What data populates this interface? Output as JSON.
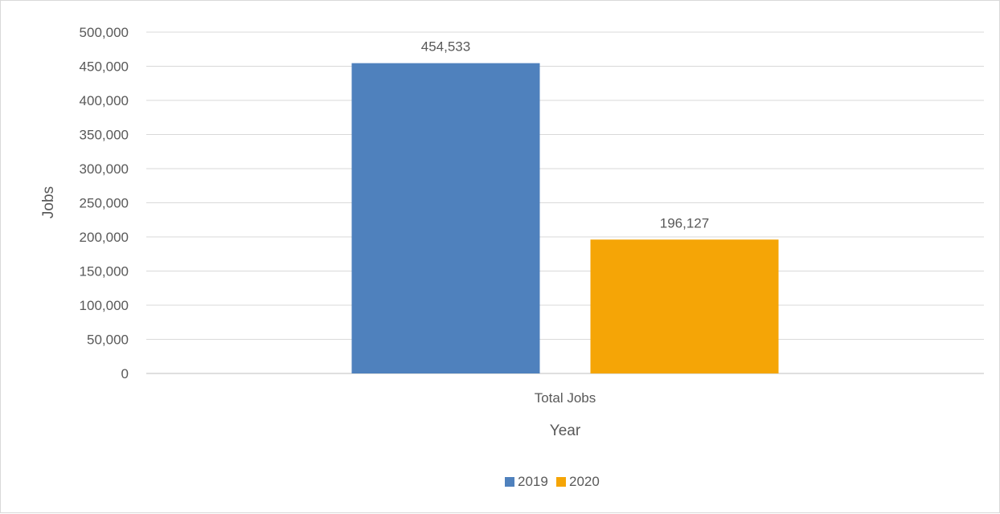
{
  "chart_data": {
    "type": "bar",
    "title": "",
    "categories": [
      "Total Jobs"
    ],
    "series": [
      {
        "name": "2019",
        "values": [
          454533
        ],
        "color": "#4F81BD",
        "label": "454,533"
      },
      {
        "name": "2020",
        "values": [
          196127
        ],
        "color": "#F5A506",
        "label": "196,127"
      }
    ],
    "xlabel": "Year",
    "ylabel": "Jobs",
    "ylim": [
      0,
      500000
    ],
    "yticks": [
      0,
      50000,
      100000,
      150000,
      200000,
      250000,
      300000,
      350000,
      400000,
      450000,
      500000
    ],
    "ytick_labels": [
      "0",
      "50,000",
      "100,000",
      "150,000",
      "200,000",
      "250,000",
      "300,000",
      "350,000",
      "400,000",
      "450,000",
      "500,000"
    ],
    "grid": true,
    "legend": "bottom-center"
  }
}
